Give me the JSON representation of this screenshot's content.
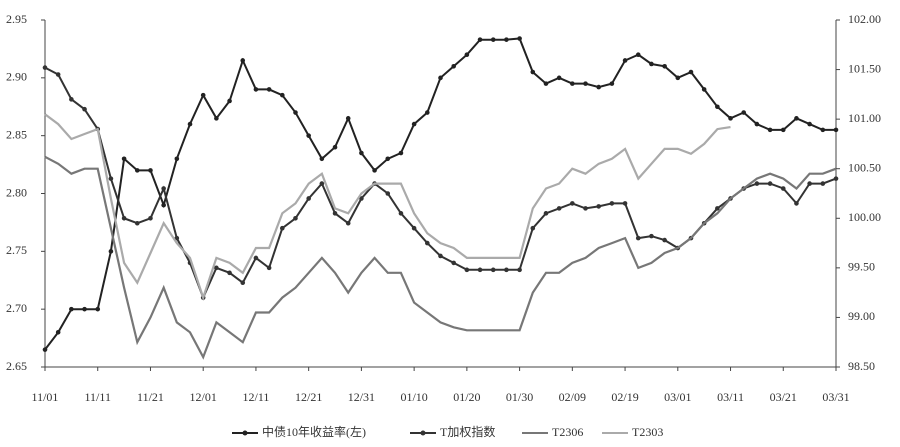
{
  "chart_data": {
    "type": "line",
    "categories": [
      "11/01",
      null,
      null,
      null,
      "11/11",
      null,
      null,
      null,
      "11/21",
      null,
      null,
      null,
      "12/01",
      null,
      null,
      null,
      "12/11",
      null,
      null,
      null,
      "12/21",
      null,
      null,
      null,
      "12/31",
      null,
      null,
      null,
      "01/10",
      null,
      null,
      null,
      "01/20",
      null,
      null,
      null,
      "01/30",
      null,
      null,
      null,
      "02/09",
      null,
      null,
      null,
      "02/19",
      null,
      null,
      null,
      "03/01",
      null,
      null,
      null,
      "03/11",
      null,
      null,
      null,
      "03/21",
      null,
      null,
      null,
      "03/31"
    ],
    "ylim": [
      2.65,
      2.95
    ],
    "yticks": [
      2.65,
      {
        "value": 2.7,
        "label": "2.70"
      },
      2.75,
      {
        "value": 2.8,
        "label": "2.80"
      },
      2.85,
      {
        "value": 2.9,
        "label": "2.90"
      },
      2.95
    ],
    "y2lim": [
      98.5,
      102
    ],
    "y2ticks": [
      {
        "value": 98.5,
        "label": "98.50"
      },
      {
        "value": 99,
        "label": "99.00"
      },
      {
        "value": 99.5,
        "label": "99.50"
      },
      {
        "value": 100,
        "label": "100.00"
      },
      {
        "value": 100.5,
        "label": "100.50"
      },
      {
        "value": 101,
        "label": "101.00"
      },
      {
        "value": 101.5,
        "label": "101.50"
      },
      {
        "value": 102,
        "label": "102.00"
      }
    ],
    "legend": "bottom",
    "series": [
      {
        "name": "中债10年收益率(左)",
        "color": "#222222",
        "markers": true,
        "values": [
          2.665,
          2.68,
          2.7,
          2.7,
          2.7,
          2.75,
          2.83,
          2.82,
          2.82,
          2.79,
          2.83,
          2.86,
          2.885,
          2.865,
          2.88,
          2.915,
          2.89,
          2.89,
          2.885,
          2.87,
          2.85,
          2.83,
          2.84,
          2.865,
          2.835,
          2.82,
          2.83,
          2.835,
          2.86,
          2.87,
          2.9,
          2.91,
          2.92,
          2.933,
          2.933,
          2.933,
          2.934,
          2.905,
          2.895,
          2.9,
          2.895,
          2.895,
          2.892,
          2.895,
          2.915,
          2.92,
          2.912,
          2.91,
          2.9,
          2.905,
          2.89,
          2.875,
          2.865,
          2.87,
          2.86,
          2.855,
          2.855,
          2.865,
          2.86,
          2.855,
          2.855
        ]
      },
      {
        "name": "T加权指数",
        "color": "#333333",
        "markers": true,
        "axis": "y2",
        "values": [
          101.52,
          101.45,
          101.2,
          101.1,
          100.9,
          100.4,
          100.0,
          99.95,
          100.0,
          100.3,
          99.8,
          99.55,
          99.2,
          99.5,
          99.45,
          99.35,
          99.6,
          99.5,
          99.9,
          100.0,
          100.2,
          100.35,
          100.05,
          99.95,
          100.2,
          100.35,
          100.25,
          100.05,
          99.9,
          99.75,
          99.62,
          99.55,
          99.48,
          99.48,
          99.48,
          99.48,
          99.48,
          99.9,
          100.05,
          100.1,
          100.15,
          100.1,
          100.12,
          100.15,
          100.15,
          99.8,
          99.82,
          99.78,
          99.7,
          99.8,
          99.95,
          100.1,
          100.2,
          100.3,
          100.35,
          100.35,
          100.3,
          100.15,
          100.35,
          100.35,
          100.4
        ]
      },
      {
        "name": "T2306",
        "color": "#777777",
        "markers": false,
        "axis": "y2",
        "values": [
          100.62,
          100.55,
          100.45,
          100.5,
          100.5,
          99.9,
          99.3,
          98.75,
          99.0,
          99.3,
          98.95,
          98.85,
          98.6,
          98.95,
          98.85,
          98.75,
          99.05,
          99.05,
          99.2,
          99.3,
          99.45,
          99.6,
          99.45,
          99.25,
          99.45,
          99.6,
          99.45,
          99.45,
          99.15,
          99.05,
          98.95,
          98.9,
          98.87,
          98.87,
          98.87,
          98.87,
          98.87,
          99.25,
          99.45,
          99.45,
          99.55,
          99.6,
          99.7,
          99.75,
          99.8,
          99.5,
          99.55,
          99.65,
          99.7,
          99.8,
          99.95,
          100.05,
          100.2,
          100.3,
          100.4,
          100.45,
          100.4,
          100.3,
          100.45,
          100.45,
          100.5
        ]
      },
      {
        "name": "T2303",
        "color": "#aaaaaa",
        "markers": false,
        "axis": "y2",
        "values": [
          101.05,
          100.95,
          100.8,
          100.85,
          100.9,
          100.2,
          99.55,
          99.35,
          99.65,
          99.95,
          99.75,
          99.6,
          99.2,
          99.6,
          99.55,
          99.45,
          99.7,
          99.7,
          100.05,
          100.15,
          100.35,
          100.45,
          100.1,
          100.05,
          100.25,
          100.35,
          100.35,
          100.35,
          100.05,
          99.85,
          99.75,
          99.7,
          99.6,
          99.6,
          99.6,
          99.6,
          99.6,
          100.1,
          100.3,
          100.35,
          100.5,
          100.45,
          100.55,
          100.6,
          100.7,
          100.4,
          100.55,
          100.7,
          100.7,
          100.65,
          100.75,
          100.9,
          100.92,
          null,
          null,
          null,
          null,
          null,
          null,
          null,
          null
        ]
      }
    ]
  }
}
